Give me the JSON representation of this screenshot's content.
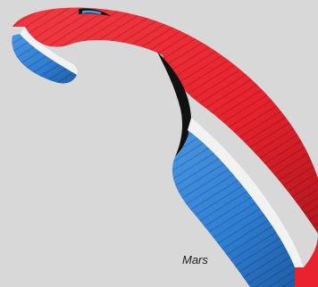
{
  "product": {
    "name": "Mars"
  },
  "colors": {
    "background": "#d8d8d8",
    "top_surface": "#e8232d",
    "top_surface_shadow": "#b5161f",
    "bottom_surface": "#2f7fd4",
    "bottom_surface_shadow": "#1f5ea8",
    "accent_stripe": "#f2f2f2",
    "accent_dark": "#111111"
  }
}
